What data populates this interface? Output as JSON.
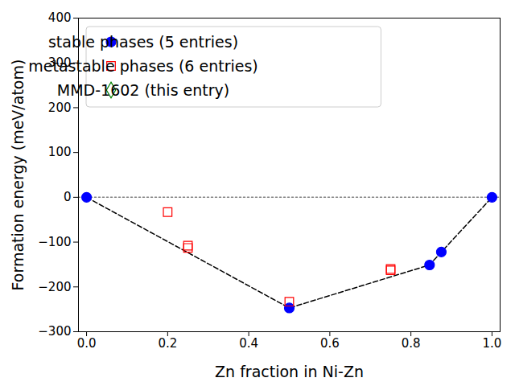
{
  "chart_data": {
    "type": "scatter",
    "xlabel": "Zn fraction in Ni-Zn",
    "ylabel": "Formation energy (meV/atom)",
    "xlim": [
      -0.02,
      1.02
    ],
    "ylim": [
      -300,
      400
    ],
    "xticks": [
      {
        "value": 0,
        "label": "0.0"
      },
      {
        "value": 0.2,
        "label": "0.2"
      },
      {
        "value": 0.4,
        "label": "0.4"
      },
      {
        "value": 0.6,
        "label": "0.6"
      },
      {
        "value": 0.8,
        "label": "0.8"
      },
      {
        "value": 1,
        "label": "1.0"
      }
    ],
    "yticks": [
      -300,
      -200,
      -100,
      0,
      100,
      200,
      300,
      400
    ],
    "legend": "upper left",
    "series": [
      {
        "type": "line",
        "color": "#808080",
        "line_style": "dotted",
        "x": [
          -0.02,
          1.02
        ],
        "y": [
          0,
          0
        ]
      },
      {
        "type": "line",
        "color": "#000000",
        "line_style": "dashed",
        "x": [
          0,
          0.5,
          0.846,
          0.875,
          1
        ],
        "y": [
          0,
          -247,
          -151,
          -122,
          0
        ]
      },
      {
        "name": "stable phases (5 entries)",
        "type": "scatter",
        "color": "#0000ff",
        "marker": "filled_circle",
        "x": [
          0,
          0.5,
          0.846,
          0.875,
          1
        ],
        "y": [
          0,
          -247,
          -151,
          -122,
          0
        ]
      },
      {
        "name": "metastable phases (6 entries)",
        "type": "scatter",
        "color": "#ff0000",
        "marker": "open_square",
        "x": [
          0.2,
          0.25,
          0.25,
          0.5,
          0.75,
          0.75
        ],
        "y": [
          -33,
          -108,
          -113,
          -233,
          -160,
          -163
        ]
      },
      {
        "name": "MMD-1602 (this entry)",
        "type": "scatter",
        "color": "#008000",
        "marker": "open_diamond",
        "x": [],
        "y": []
      }
    ]
  }
}
